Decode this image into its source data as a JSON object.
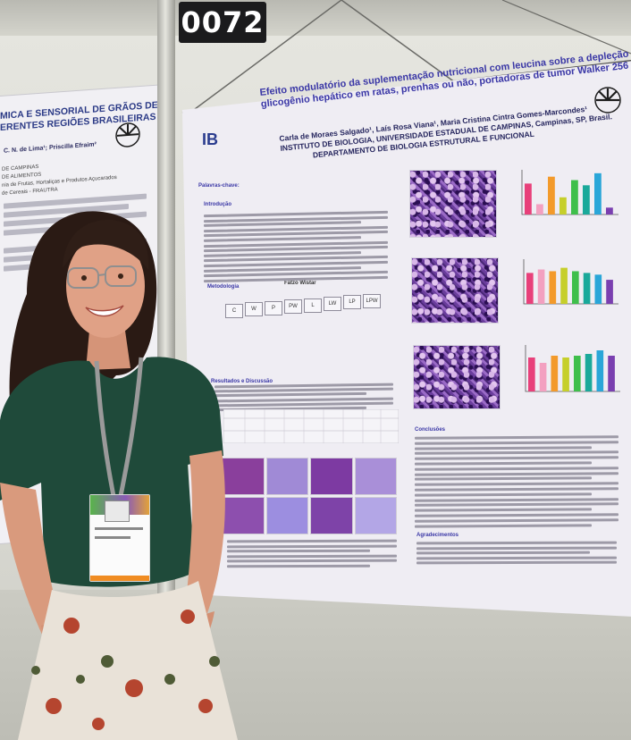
{
  "booth": {
    "number": "0072"
  },
  "left_poster": {
    "title_lines": [
      "MICA E SENSORIAL DE GRÃOS DE CAFÉ",
      "ERENTES REGIÕES BRASILEIRAS"
    ],
    "authors": "C. N. de Lima¹; Priscilla Efraim²",
    "institution_lines": [
      "DE CAMPINAS",
      "DE ALIMENTOS",
      "nia de Frutas, Hortaliças e Produtos Açucarados",
      "de Cereais - FRAUTRA"
    ]
  },
  "poster": {
    "logo_left": "IB",
    "title_lines": [
      "Efeito modulatório da suplementação nutricional com leucina sobre a depleção de",
      "glicogênio hepático em ratas, prenhas ou não, portadoras de tumor Walker 256"
    ],
    "authors_lines": [
      "Carla de Moraes Salgado¹, Laís Rosa Viana¹, Maria Cristina Cintra Gomes-Marcondes¹",
      "INSTITUTO DE BIOLOGIA, UNIVERSIDADE ESTADUAL DE CAMPINAS, Campinas, SP, Brasil.",
      "DEPARTAMENTO DE BIOLOGIA ESTRUTURAL E FUNCIONAL"
    ],
    "sections": {
      "keywords": "Palavras-chave:",
      "introduction": "Introdução",
      "methodology": "Metodologia",
      "methodology_label": "Fatzo Wistar",
      "results": "Resultados e Discussão",
      "conclusion": "Conclusões",
      "acknowledgements": "Agradecimentos"
    },
    "method_groups": [
      "C",
      "W",
      "P",
      "PW",
      "L",
      "LW",
      "LP",
      "LPW"
    ]
  },
  "charts": {
    "bar_colors": [
      "#e8407a",
      "#f3a0c0",
      "#f39a2a",
      "#c6cf2a",
      "#3fbf4b",
      "#1aa99a",
      "#2aa6d8",
      "#7a3fb0"
    ],
    "chart1_values": [
      0.9,
      0.3,
      1.1,
      0.5,
      1.0,
      0.85,
      1.2,
      0.2
    ],
    "chart2_values": [
      0.9,
      1.0,
      0.95,
      1.05,
      0.95,
      0.9,
      0.85,
      0.7
    ],
    "chart3_values": [
      0.95,
      0.8,
      1.0,
      0.95,
      1.0,
      1.05,
      1.15,
      1.0
    ]
  },
  "colors": {
    "poster_title": "#3a37a6",
    "micro_stain": "#6a3d9c",
    "shirt": "#1f4a3a",
    "lanyard": "#9a9a9a",
    "badge_orange": "#f08c22"
  }
}
